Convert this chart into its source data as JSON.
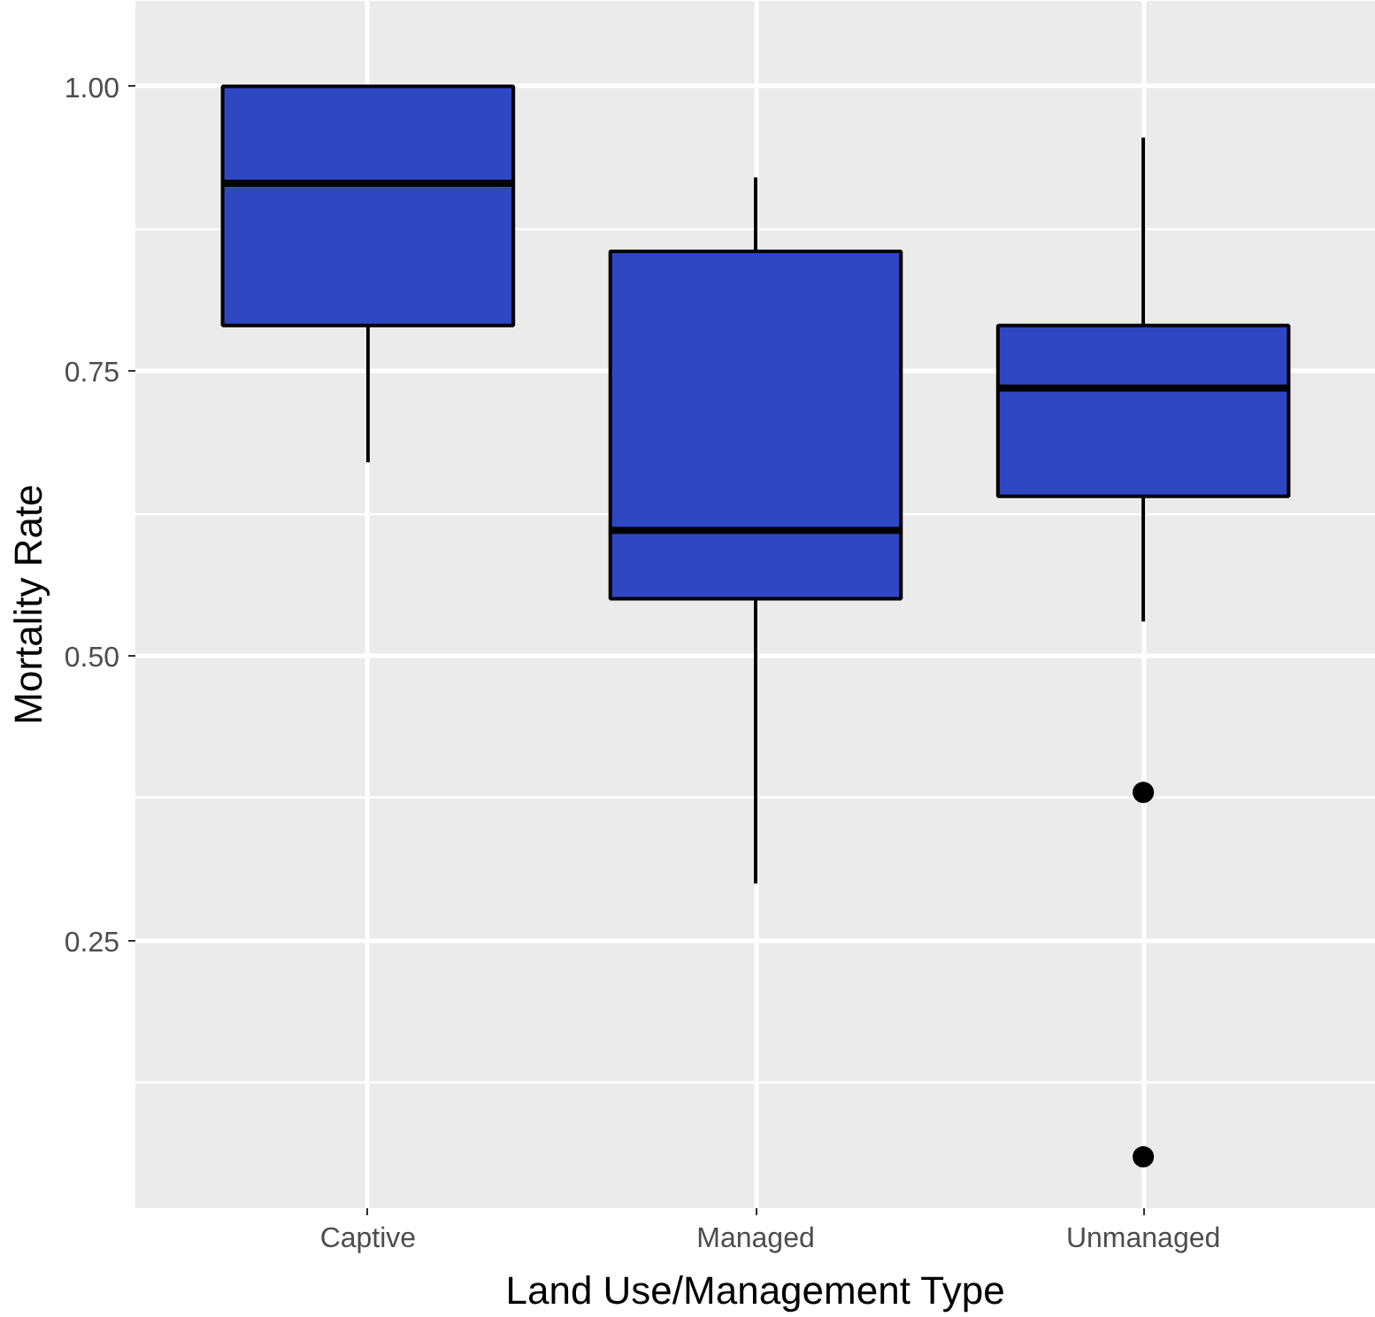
{
  "chart_data": {
    "type": "box",
    "xlabel": "Land Use/Management Type",
    "ylabel": "Mortality Rate",
    "categories": [
      "Captive",
      "Managed",
      "Unmanaged"
    ],
    "boxes": [
      {
        "low": 0.67,
        "q1": 0.79,
        "median": 0.915,
        "q3": 1.0,
        "high": 1.0
      },
      {
        "low": 0.3,
        "q1": 0.55,
        "median": 0.61,
        "q3": 0.855,
        "high": 0.92
      },
      {
        "low": 0.53,
        "q1": 0.64,
        "median": 0.735,
        "q3": 0.79,
        "high": 0.955,
        "outliers": [
          0.38,
          0.06
        ]
      }
    ],
    "color": "#2f47c2",
    "ylim": [
      0.015,
      1.075
    ],
    "yticks": [
      {
        "value": 0.25,
        "label": "0.25"
      },
      {
        "value": 0.5,
        "label": "0.50"
      },
      {
        "value": 0.75,
        "label": "0.75"
      },
      {
        "value": 1.0,
        "label": "1.00"
      }
    ],
    "grid": true
  }
}
